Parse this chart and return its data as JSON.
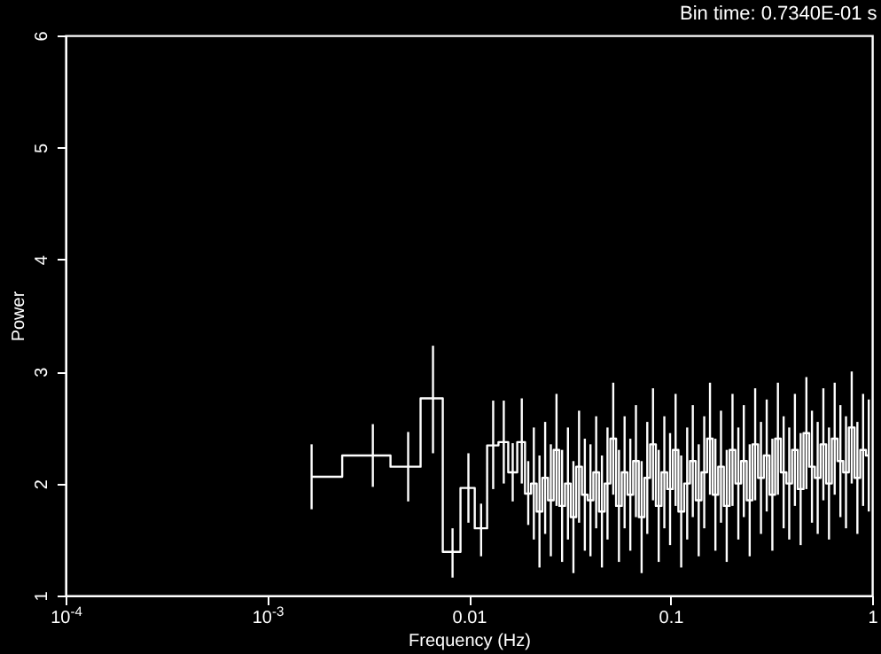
{
  "chart_data": {
    "type": "step",
    "xlabel": "Frequency (Hz)",
    "ylabel": "Power",
    "annotations": [
      "Bin time:   0.7340E-01 s"
    ],
    "log": "x",
    "grid": false,
    "marker": "none",
    "line_style": "solid",
    "xlim": [
      0.0001,
      1
    ],
    "xticks": [
      {
        "value": 0.0001,
        "label": "10$^{-4}$"
      },
      {
        "value": 0.001,
        "label": "10$^{-3}$"
      },
      0.01,
      0.1,
      1
    ],
    "ylim": [
      1,
      6
    ],
    "yticks": [
      1,
      2,
      3,
      4,
      5,
      6
    ],
    "series": [
      {
        "color": "#ffffff",
        "x": [
          0.00166,
          0.00334,
          0.005,
          0.00664,
          0.0083,
          0.00995,
          0.0115,
          0.0132,
          0.0149,
          0.0165,
          0.0183,
          0.0197,
          0.021,
          0.0224,
          0.0239,
          0.0255,
          0.0272,
          0.029,
          0.031,
          0.033,
          0.0352,
          0.0376,
          0.0401,
          0.0428,
          0.0457,
          0.0487,
          0.052,
          0.0555,
          0.0592,
          0.0632,
          0.0674,
          0.0719,
          0.0767,
          0.0819,
          0.0874,
          0.0932,
          0.0995,
          0.106,
          0.113,
          0.121,
          0.129,
          0.138,
          0.147,
          0.157,
          0.167,
          0.178,
          0.19,
          0.203,
          0.217,
          0.231,
          0.247,
          0.263,
          0.281,
          0.3,
          0.32,
          0.341,
          0.364,
          0.388,
          0.414,
          0.442,
          0.472,
          0.503,
          0.537,
          0.573,
          0.611,
          0.652,
          0.696,
          0.742,
          0.792,
          0.845,
          0.902,
          0.962
        ],
        "values": [
          2.06,
          2.25,
          2.15,
          2.76,
          1.39,
          1.96,
          1.6,
          2.34,
          2.37,
          2.1,
          2.37,
          1.91,
          2.0,
          1.75,
          2.05,
          1.85,
          2.3,
          1.8,
          2.0,
          1.7,
          2.15,
          1.9,
          1.85,
          2.1,
          1.75,
          2.0,
          2.4,
          1.8,
          2.1,
          1.9,
          2.2,
          1.7,
          2.05,
          2.35,
          1.8,
          2.1,
          1.95,
          2.3,
          1.75,
          2.0,
          2.2,
          1.85,
          2.1,
          2.4,
          1.9,
          2.15,
          1.8,
          2.3,
          2.0,
          2.2,
          1.85,
          2.35,
          2.05,
          2.25,
          1.9,
          2.4,
          2.1,
          2.0,
          2.3,
          1.95,
          2.45,
          2.15,
          2.05,
          2.35,
          2.0,
          2.4,
          2.2,
          2.1,
          2.5,
          2.05,
          2.3,
          2.25
        ],
        "errors": [
          [
            1.77,
            2.35
          ],
          [
            1.97,
            2.53
          ],
          [
            1.84,
            2.46
          ],
          [
            2.27,
            3.23
          ],
          [
            1.16,
            1.6
          ],
          [
            1.65,
            2.27
          ],
          [
            1.35,
            1.82
          ],
          [
            1.95,
            2.74
          ],
          [
            2.0,
            2.74
          ],
          [
            1.84,
            2.36
          ],
          [
            2.0,
            2.76
          ],
          [
            1.63,
            2.2
          ],
          0.5,
          0.5,
          0.5,
          0.5,
          0.5,
          0.5,
          0.5,
          0.5,
          0.5,
          0.5,
          0.5,
          0.5,
          0.5,
          0.5,
          0.5,
          0.5,
          0.5,
          0.5,
          0.5,
          0.5,
          0.5,
          0.5,
          0.5,
          0.5,
          0.5,
          0.5,
          0.5,
          0.5,
          0.5,
          0.5,
          0.5,
          0.5,
          0.5,
          0.5,
          0.5,
          0.5,
          0.5,
          0.5,
          0.5,
          0.5,
          0.5,
          0.5,
          0.5,
          0.5,
          0.5,
          0.5,
          0.5,
          0.5,
          0.5,
          0.5,
          0.5,
          0.5,
          0.5,
          0.5,
          0.5,
          0.5,
          0.5,
          0.5,
          0.5,
          0.5
        ]
      }
    ]
  }
}
